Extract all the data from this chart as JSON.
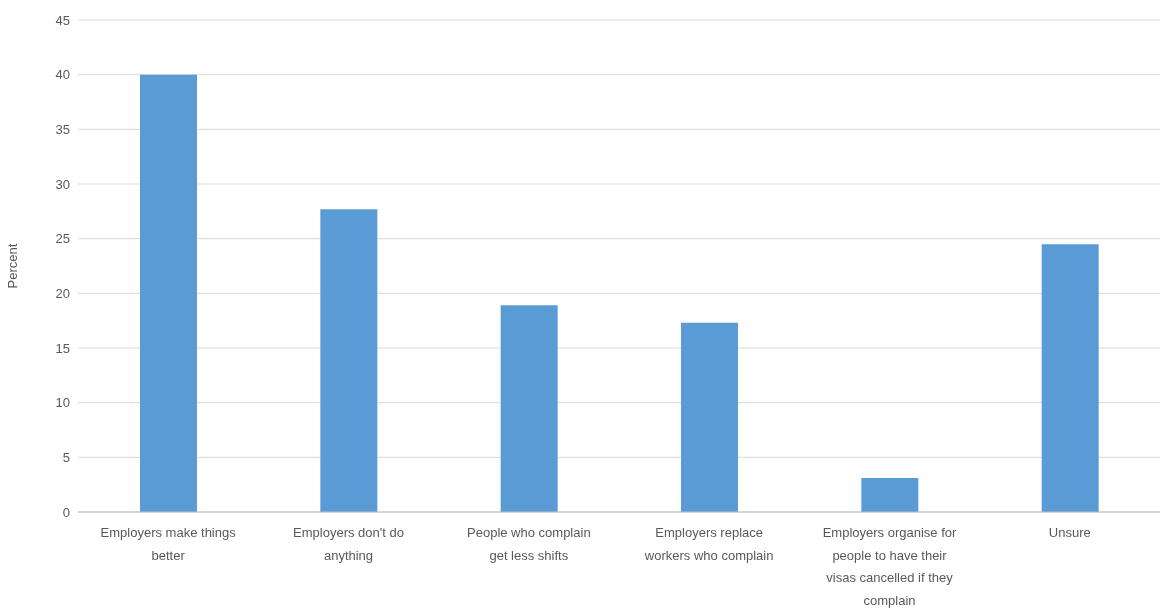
{
  "chart_data": {
    "type": "bar",
    "ylabel": "Percent",
    "categories": [
      "Employers make things better",
      "Employers don't do anything",
      "People who complain get less shifts",
      "Employers replace workers who complain",
      "Employers organise for people to have their visas cancelled if they complain",
      "Unsure"
    ],
    "values": [
      40,
      27.7,
      18.9,
      17.3,
      3.1,
      24.5
    ],
    "color": "#5b9bd5",
    "ylim": [
      0,
      45
    ],
    "yticks": [
      0,
      5,
      10,
      15,
      20,
      25,
      30,
      35,
      40,
      45
    ],
    "grid": "y"
  }
}
